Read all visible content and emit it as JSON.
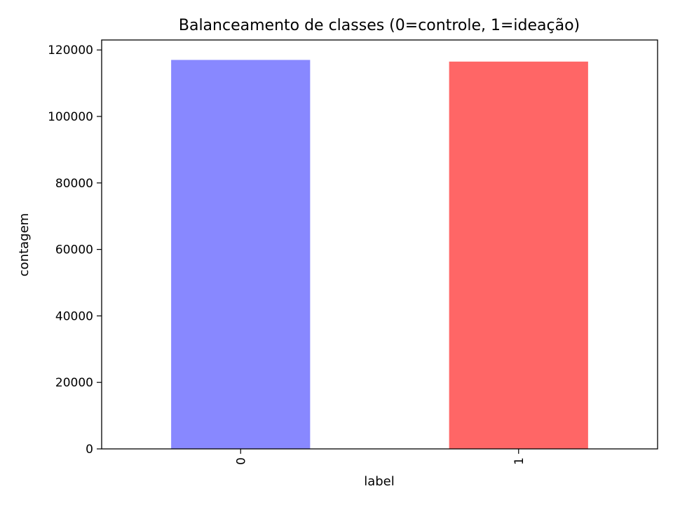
{
  "chart_data": {
    "type": "bar",
    "title": "Balanceamento de classes (0=controle, 1=ideação)",
    "xlabel": "label",
    "ylabel": "contagem",
    "categories": [
      "0",
      "1"
    ],
    "values": [
      117000,
      116500
    ],
    "ylim": [
      0,
      123000
    ],
    "yticks": [
      0,
      20000,
      40000,
      60000,
      80000,
      100000,
      120000
    ],
    "bar_colors": [
      "#8888ff",
      "#ff6666"
    ],
    "grid": false,
    "legend": "none"
  }
}
